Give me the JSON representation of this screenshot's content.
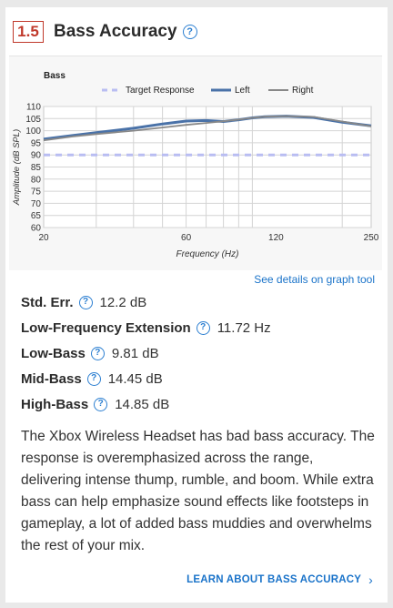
{
  "header": {
    "score": "1.5",
    "title": "Bass Accuracy",
    "help_icon": "question-circle-icon"
  },
  "chart_data": {
    "type": "line",
    "title": "Bass",
    "xlabel": "Frequency (Hz)",
    "ylabel": "Amplitude (dB SPL)",
    "xscale": "log",
    "xlim": [
      20,
      250
    ],
    "ylim": [
      60,
      110
    ],
    "xticks": [
      20,
      60,
      120,
      250
    ],
    "yticks": [
      60,
      65,
      70,
      75,
      80,
      85,
      90,
      95,
      100,
      105,
      110
    ],
    "grid": true,
    "legend_position": "top",
    "series": [
      {
        "name": "Target Response",
        "style": "dashed",
        "color": "#b9bdf2",
        "x": [
          20,
          250
        ],
        "y": [
          90,
          90
        ]
      },
      {
        "name": "Left",
        "style": "solid",
        "color": "#4a72a8",
        "x": [
          20,
          25,
          30,
          40,
          50,
          60,
          70,
          80,
          90,
          100,
          110,
          130,
          160,
          200,
          250
        ],
        "y": [
          96.5,
          98,
          99.2,
          101,
          102.8,
          104,
          104.2,
          103.8,
          104.5,
          105.3,
          105.8,
          106,
          105.5,
          103.5,
          102
        ]
      },
      {
        "name": "Right",
        "style": "solid",
        "color": "#888888",
        "x": [
          20,
          25,
          30,
          40,
          50,
          60,
          70,
          80,
          90,
          100,
          110,
          130,
          160,
          200,
          250
        ],
        "y": [
          96,
          97.6,
          98.6,
          100,
          101.3,
          102.4,
          103.2,
          103.9,
          104.6,
          105.3,
          105.8,
          106,
          105.7,
          103.8,
          101.8
        ]
      }
    ]
  },
  "graph_tool_link": "See details on graph tool",
  "stats": [
    {
      "label": "Std. Err.",
      "value": "12.2 dB"
    },
    {
      "label": "Low-Frequency Extension",
      "value": "11.72 Hz"
    },
    {
      "label": "Low-Bass",
      "value": "9.81 dB"
    },
    {
      "label": "Mid-Bass",
      "value": "14.45 dB"
    },
    {
      "label": "High-Bass",
      "value": "14.85 dB"
    }
  ],
  "description": "The Xbox Wireless Headset has bad bass accuracy. The response is overemphasized across the range, delivering intense thump, rumble, and boom. While extra bass can help emphasize sound effects like footsteps in gameplay, a lot of added bass muddies and overwhelms the rest of your mix.",
  "learn_link": "LEARN ABOUT BASS ACCURACY",
  "learn_icon": "chevron-right-icon"
}
